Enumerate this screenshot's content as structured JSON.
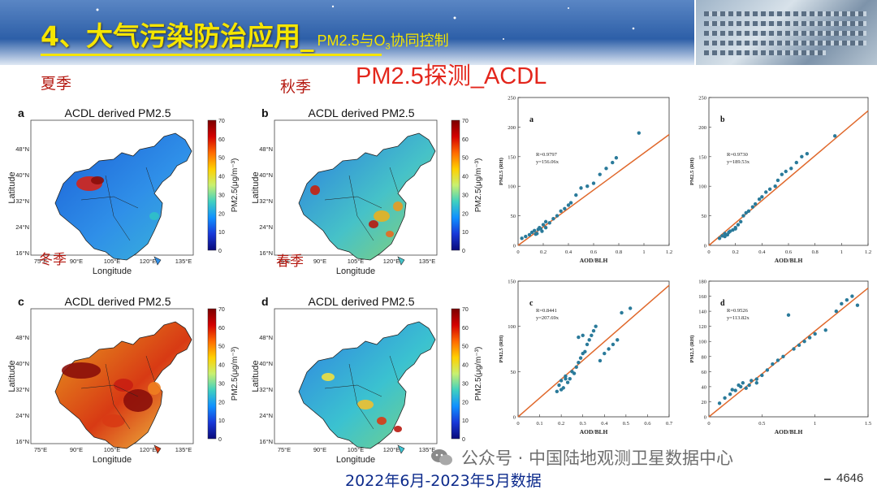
{
  "title": {
    "main": "4、大气污染防治应用_",
    "sub": "PM2.5与O",
    "sub_script": "3",
    "sub_tail": "协同控制"
  },
  "topic": "PM2.5探测_ACDL",
  "seasons": {
    "summer": "夏季",
    "autumn": "秋季",
    "winter": "冬季",
    "spring": "春季"
  },
  "footer": {
    "date_range": "2022年6月-2023年5月数据",
    "watermark": "公众号 · 中国陆地观测卫星数据中心",
    "page": "4646"
  },
  "colors": {
    "title": "#f5e500",
    "topic": "#e3261c",
    "season": "#b51a12",
    "fit_line": "#e0682b",
    "points": "#2a7a9a"
  },
  "maps": [
    {
      "panel": "a",
      "title": "ACDL derived PM2.5",
      "xlabel": "Longitude",
      "ylabel": "Latitude",
      "cbar_label": "PM2.5(μg/m⁻³)",
      "xticks": [
        "75°E",
        "90°E",
        "105°E",
        "120°E",
        "135°E"
      ],
      "yticks": [
        "48°N",
        "40°N",
        "32°N",
        "24°N",
        "16°N"
      ],
      "cbar_ticks": [
        "70",
        "60",
        "50",
        "40",
        "30",
        "20",
        "10",
        "0"
      ]
    },
    {
      "panel": "b",
      "title": "ACDL derived PM2.5",
      "xlabel": "Longitude",
      "ylabel": "Latitude",
      "cbar_label": "PM2.5(μg/m⁻³)",
      "xticks": [
        "75°E",
        "90°E",
        "105°E",
        "120°E",
        "135°E"
      ],
      "yticks": [
        "48°N",
        "40°N",
        "32°N",
        "24°N",
        "16°N"
      ],
      "cbar_ticks": [
        "70",
        "60",
        "50",
        "40",
        "30",
        "20",
        "10",
        "0"
      ]
    },
    {
      "panel": "c",
      "title": "ACDL derived PM2.5",
      "xlabel": "Longitude",
      "ylabel": "Latitude",
      "cbar_label": "PM2.5(μg/m⁻³)",
      "xticks": [
        "75°E",
        "90°E",
        "105°E",
        "120°E",
        "135°E"
      ],
      "yticks": [
        "48°N",
        "40°N",
        "32°N",
        "24°N",
        "16°N"
      ],
      "cbar_ticks": [
        "70",
        "60",
        "50",
        "40",
        "30",
        "20",
        "10",
        "0"
      ]
    },
    {
      "panel": "d",
      "title": "ACDL derived PM2.5",
      "xlabel": "Longitude",
      "ylabel": "Latitude",
      "cbar_label": "PM2.5(μg/m⁻³)",
      "xticks": [
        "75°E",
        "90°E",
        "105°E",
        "120°E",
        "135°E"
      ],
      "yticks": [
        "48°N",
        "40°N",
        "32°N",
        "24°N",
        "16°N"
      ],
      "cbar_ticks": [
        "70",
        "60",
        "50",
        "40",
        "30",
        "20",
        "10",
        "0"
      ]
    }
  ],
  "chart_data": [
    {
      "type": "scatter",
      "panel": "a",
      "xlabel": "AOD/BLH",
      "ylabel": "PM2.5 (RH)",
      "annotation_r": "R=0.9797",
      "annotation_eq": "y=156.06x",
      "xlim": [
        0,
        1.2
      ],
      "ylim": [
        0,
        250
      ],
      "xticks": [
        0,
        0.2,
        0.4,
        0.6,
        0.8,
        1,
        1.2
      ],
      "yticks": [
        0,
        50,
        100,
        150,
        200,
        250
      ],
      "slope": 156.06,
      "points": [
        [
          0.03,
          12
        ],
        [
          0.06,
          15
        ],
        [
          0.09,
          18
        ],
        [
          0.11,
          22
        ],
        [
          0.13,
          25
        ],
        [
          0.15,
          20
        ],
        [
          0.16,
          27
        ],
        [
          0.17,
          30
        ],
        [
          0.18,
          28
        ],
        [
          0.19,
          24
        ],
        [
          0.2,
          35
        ],
        [
          0.22,
          40
        ],
        [
          0.25,
          38
        ],
        [
          0.28,
          45
        ],
        [
          0.31,
          50
        ],
        [
          0.34,
          58
        ],
        [
          0.37,
          62
        ],
        [
          0.4,
          68
        ],
        [
          0.42,
          72
        ],
        [
          0.46,
          85
        ],
        [
          0.5,
          97
        ],
        [
          0.55,
          100
        ],
        [
          0.6,
          105
        ],
        [
          0.65,
          120
        ],
        [
          0.7,
          130
        ],
        [
          0.75,
          140
        ],
        [
          0.78,
          148
        ],
        [
          0.96,
          190
        ],
        [
          0.22,
          30
        ],
        [
          0.14,
          19
        ]
      ]
    },
    {
      "type": "scatter",
      "panel": "b",
      "xlabel": "AOD/BLH",
      "ylabel": "PM2.5 (RH)",
      "annotation_r": "R=0.9730",
      "annotation_eq": "y=189.53x",
      "xlim": [
        0,
        1.2
      ],
      "ylim": [
        0,
        250
      ],
      "xticks": [
        0,
        0.2,
        0.4,
        0.6,
        0.8,
        1,
        1.2
      ],
      "yticks": [
        0,
        50,
        100,
        150,
        200,
        250
      ],
      "slope": 189.53,
      "points": [
        [
          0.08,
          12
        ],
        [
          0.1,
          16
        ],
        [
          0.12,
          20
        ],
        [
          0.14,
          18
        ],
        [
          0.16,
          24
        ],
        [
          0.18,
          26
        ],
        [
          0.2,
          30
        ],
        [
          0.22,
          35
        ],
        [
          0.24,
          40
        ],
        [
          0.26,
          50
        ],
        [
          0.28,
          55
        ],
        [
          0.3,
          58
        ],
        [
          0.33,
          65
        ],
        [
          0.35,
          70
        ],
        [
          0.38,
          78
        ],
        [
          0.4,
          82
        ],
        [
          0.43,
          90
        ],
        [
          0.46,
          95
        ],
        [
          0.5,
          100
        ],
        [
          0.52,
          110
        ],
        [
          0.55,
          120
        ],
        [
          0.58,
          125
        ],
        [
          0.62,
          130
        ],
        [
          0.66,
          140
        ],
        [
          0.7,
          150
        ],
        [
          0.74,
          155
        ],
        [
          0.95,
          185
        ],
        [
          0.2,
          28
        ],
        [
          0.15,
          22
        ],
        [
          0.12,
          15
        ]
      ]
    },
    {
      "type": "scatter",
      "panel": "c",
      "xlabel": "AOD/BLH",
      "ylabel": "PM2.5 (RH)",
      "annotation_r": "R=0.8441",
      "annotation_eq": "y=207.69x",
      "xlim": [
        0,
        0.7
      ],
      "ylim": [
        0,
        150
      ],
      "xticks": [
        0,
        0.1,
        0.2,
        0.3,
        0.4,
        0.5,
        0.6,
        0.7
      ],
      "yticks": [
        0,
        50,
        100,
        150
      ],
      "slope": 207.69,
      "points": [
        [
          0.18,
          28
        ],
        [
          0.19,
          35
        ],
        [
          0.2,
          40
        ],
        [
          0.21,
          32
        ],
        [
          0.22,
          45
        ],
        [
          0.23,
          38
        ],
        [
          0.24,
          42
        ],
        [
          0.25,
          50
        ],
        [
          0.26,
          48
        ],
        [
          0.27,
          55
        ],
        [
          0.28,
          60
        ],
        [
          0.29,
          65
        ],
        [
          0.3,
          70
        ],
        [
          0.31,
          72
        ],
        [
          0.32,
          80
        ],
        [
          0.33,
          85
        ],
        [
          0.34,
          90
        ],
        [
          0.35,
          95
        ],
        [
          0.36,
          100
        ],
        [
          0.38,
          62
        ],
        [
          0.4,
          70
        ],
        [
          0.42,
          75
        ],
        [
          0.44,
          80
        ],
        [
          0.46,
          85
        ],
        [
          0.48,
          115
        ],
        [
          0.52,
          120
        ],
        [
          0.3,
          90
        ],
        [
          0.28,
          88
        ],
        [
          0.22,
          42
        ],
        [
          0.2,
          30
        ]
      ]
    },
    {
      "type": "scatter",
      "panel": "d",
      "xlabel": "AOD/BLH",
      "ylabel": "PM2.5 (RH)",
      "annotation_r": "R=0.9526",
      "annotation_eq": "y=113.82x",
      "xlim": [
        0,
        1.5
      ],
      "ylim": [
        0,
        180
      ],
      "xticks": [
        0,
        0.5,
        1,
        1.5
      ],
      "yticks": [
        0,
        20,
        40,
        60,
        80,
        100,
        120,
        140,
        160,
        180
      ],
      "slope": 113.82,
      "points": [
        [
          0.1,
          18
        ],
        [
          0.15,
          25
        ],
        [
          0.2,
          30
        ],
        [
          0.25,
          35
        ],
        [
          0.3,
          40
        ],
        [
          0.32,
          45
        ],
        [
          0.35,
          38
        ],
        [
          0.38,
          42
        ],
        [
          0.4,
          48
        ],
        [
          0.45,
          50
        ],
        [
          0.5,
          55
        ],
        [
          0.55,
          62
        ],
        [
          0.6,
          70
        ],
        [
          0.65,
          75
        ],
        [
          0.7,
          80
        ],
        [
          0.75,
          135
        ],
        [
          0.8,
          90
        ],
        [
          0.85,
          95
        ],
        [
          0.9,
          100
        ],
        [
          0.95,
          105
        ],
        [
          1.0,
          110
        ],
        [
          1.1,
          115
        ],
        [
          1.2,
          140
        ],
        [
          1.25,
          150
        ],
        [
          1.3,
          155
        ],
        [
          1.35,
          160
        ],
        [
          1.4,
          148
        ],
        [
          0.28,
          42
        ],
        [
          0.22,
          36
        ],
        [
          0.45,
          45
        ]
      ]
    }
  ]
}
